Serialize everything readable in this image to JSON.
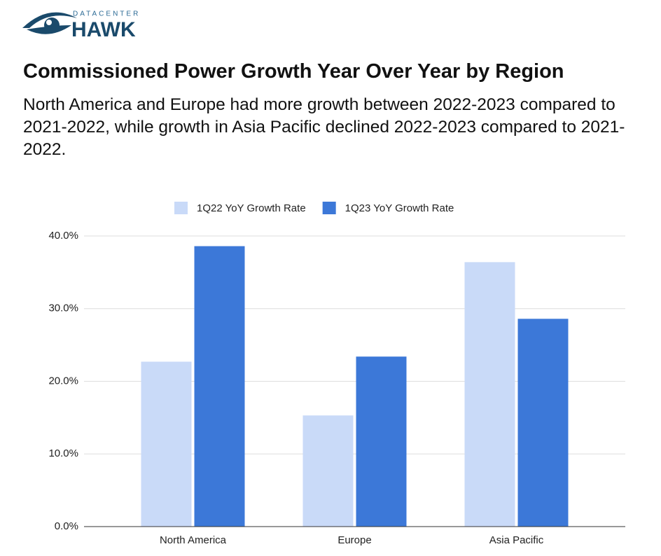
{
  "logo": {
    "top": "DATACENTER",
    "bottom": "HAWK"
  },
  "chart_data": {
    "type": "bar",
    "title": "Commissioned Power Growth Year Over Year by Region",
    "subtitle": "North America and Europe had more growth between 2022-2023 compared to 2021-2022, while growth in Asia Pacific declined 2022-2023 compared to 2021-2022.",
    "categories": [
      "North America",
      "Europe",
      "Asia Pacific"
    ],
    "series": [
      {
        "name": "1Q22 YoY Growth Rate",
        "color": "#c9daf8",
        "values": [
          22.7,
          15.3,
          36.4
        ]
      },
      {
        "name": "1Q23 YoY Growth Rate",
        "color": "#3c78d8",
        "values": [
          38.6,
          23.4,
          28.6
        ]
      }
    ],
    "ylim": [
      0,
      40
    ],
    "yticks": [
      {
        "value": 0,
        "label": "0.0%"
      },
      {
        "value": 10,
        "label": "10.0%"
      },
      {
        "value": 20,
        "label": "20.0%"
      },
      {
        "value": 30,
        "label": "30.0%"
      },
      {
        "value": 40,
        "label": "40.0%"
      }
    ],
    "grid": true,
    "legend": "top"
  }
}
